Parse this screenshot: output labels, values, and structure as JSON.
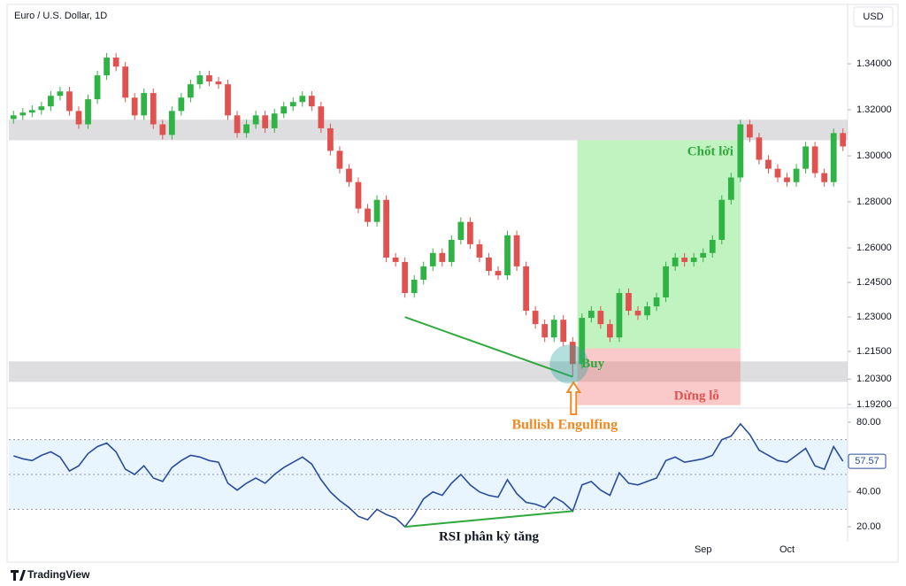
{
  "header": {
    "title": "Euro / U.S. Dollar, 1D",
    "currency": "USD"
  },
  "footer": {
    "brand": "TradingView"
  },
  "chart_data": [
    {
      "type": "candlestick",
      "categories": [
        null,
        null,
        null,
        null,
        null,
        null,
        null,
        null,
        null,
        null,
        null,
        null,
        null,
        null,
        null,
        null,
        null,
        null,
        null,
        null,
        null,
        null,
        null,
        null,
        null,
        null,
        null,
        null,
        null,
        null,
        null,
        null,
        null,
        null,
        null,
        null,
        null,
        null,
        null,
        null,
        null,
        null,
        null,
        null,
        null,
        null,
        null,
        null,
        null,
        null,
        null,
        null,
        null,
        null,
        null,
        null,
        null,
        null,
        null,
        null,
        null,
        null,
        null,
        null,
        null,
        null,
        null,
        null,
        null,
        null,
        null,
        null,
        null,
        null,
        "Sep",
        null,
        null,
        null,
        null,
        null,
        null,
        null,
        null,
        "Oct",
        null,
        null,
        null,
        null,
        null,
        null
      ],
      "open": [
        1.316,
        1.3176,
        1.3188,
        1.3199,
        1.3215,
        1.3261,
        1.328,
        1.3195,
        1.3137,
        1.3246,
        1.335,
        1.3427,
        1.3388,
        1.3253,
        1.3176,
        1.3273,
        1.3137,
        1.3091,
        1.3195,
        1.3253,
        1.3311,
        1.335,
        1.3323,
        1.3311,
        1.3176,
        1.3099,
        1.3137,
        1.3176,
        1.312,
        1.3184,
        1.3215,
        1.3234,
        1.3261,
        1.3215,
        1.312,
        1.3022,
        1.2944,
        1.2886,
        1.2771,
        1.2713,
        1.2809,
        1.2558,
        1.2539,
        1.2404,
        1.2462,
        1.252,
        1.2578,
        1.2539,
        1.2635,
        1.2713,
        1.2616,
        1.2558,
        1.25,
        1.2481,
        1.2655,
        1.252,
        1.2327,
        1.2269,
        1.2211,
        1.2288,
        1.2192,
        1.2095,
        1.2296,
        1.2327,
        1.2269,
        1.2211,
        1.2404,
        1.2327,
        1.2307,
        1.2346,
        1.2385,
        1.252,
        1.2558,
        1.2539,
        1.2558,
        1.2578,
        1.2635,
        1.2809,
        1.2906,
        1.3137,
        1.308,
        1.2983,
        1.2944,
        1.2906,
        1.2886,
        1.2944,
        1.3041,
        1.2925,
        1.2886,
        1.3099
      ],
      "high": [
        1.3196,
        1.3208,
        1.3219,
        1.3235,
        1.3281,
        1.33,
        1.33,
        1.3215,
        1.3266,
        1.337,
        1.3447,
        1.3447,
        1.3408,
        1.3273,
        1.3293,
        1.3293,
        1.3157,
        1.3215,
        1.3273,
        1.3331,
        1.337,
        1.337,
        1.3343,
        1.3331,
        1.3196,
        1.3157,
        1.3196,
        1.3196,
        1.3204,
        1.3235,
        1.3254,
        1.3281,
        1.3281,
        1.3235,
        1.314,
        1.3042,
        1.2964,
        1.2906,
        1.2791,
        1.2829,
        1.2829,
        1.2578,
        1.2559,
        1.2482,
        1.254,
        1.2598,
        1.2598,
        1.2655,
        1.2733,
        1.2733,
        1.2636,
        1.2578,
        1.252,
        1.2675,
        1.2675,
        1.254,
        1.2347,
        1.2289,
        1.2308,
        1.2308,
        1.2212,
        1.2316,
        1.2347,
        1.2347,
        1.2289,
        1.2424,
        1.2424,
        1.2347,
        1.2366,
        1.2405,
        1.254,
        1.2578,
        1.2578,
        1.2578,
        1.2598,
        1.2655,
        1.2829,
        1.2926,
        1.3157,
        1.3157,
        1.31,
        1.3003,
        1.2964,
        1.2926,
        1.2964,
        1.3061,
        1.3061,
        1.2945,
        1.3119,
        1.3119
      ],
      "low": [
        1.314,
        1.3156,
        1.3168,
        1.3179,
        1.3195,
        1.3241,
        1.3175,
        1.3117,
        1.3117,
        1.3226,
        1.333,
        1.3368,
        1.3233,
        1.3156,
        1.3156,
        1.3117,
        1.3071,
        1.3071,
        1.3175,
        1.3233,
        1.3291,
        1.3303,
        1.3291,
        1.3156,
        1.3079,
        1.3079,
        1.3117,
        1.31,
        1.31,
        1.3164,
        1.3195,
        1.3214,
        1.3195,
        1.31,
        1.3002,
        1.2924,
        1.2866,
        1.2751,
        1.2693,
        1.2693,
        1.2538,
        1.2519,
        1.2384,
        1.2384,
        1.2442,
        1.25,
        1.2519,
        1.2519,
        1.2615,
        1.2596,
        1.2538,
        1.248,
        1.2461,
        1.2461,
        1.25,
        1.2307,
        1.2249,
        1.2191,
        1.2191,
        1.2172,
        1.204,
        1.2075,
        1.2276,
        1.2249,
        1.2191,
        1.2191,
        1.2307,
        1.2287,
        1.2287,
        1.2326,
        1.2365,
        1.25,
        1.2519,
        1.2519,
        1.2538,
        1.2558,
        1.2615,
        1.2789,
        1.2886,
        1.306,
        1.2963,
        1.2924,
        1.2886,
        1.2866,
        1.2866,
        1.2924,
        1.2905,
        1.2866,
        1.2866,
        1.3021
      ],
      "close": [
        1.3176,
        1.3188,
        1.3199,
        1.3215,
        1.3261,
        1.328,
        1.3195,
        1.3137,
        1.3246,
        1.335,
        1.3427,
        1.3388,
        1.3253,
        1.3176,
        1.3273,
        1.3137,
        1.3091,
        1.3195,
        1.3253,
        1.3311,
        1.335,
        1.3323,
        1.3311,
        1.3176,
        1.3099,
        1.3137,
        1.3176,
        1.312,
        1.3184,
        1.3215,
        1.3234,
        1.3261,
        1.3215,
        1.312,
        1.3022,
        1.2944,
        1.2886,
        1.2771,
        1.2713,
        1.2809,
        1.2558,
        1.2539,
        1.2404,
        1.2462,
        1.252,
        1.2578,
        1.2539,
        1.2635,
        1.2713,
        1.2616,
        1.2558,
        1.25,
        1.2481,
        1.2655,
        1.252,
        1.2327,
        1.2269,
        1.2211,
        1.2288,
        1.2192,
        1.2095,
        1.2296,
        1.2327,
        1.2269,
        1.2211,
        1.2404,
        1.2327,
        1.2307,
        1.2346,
        1.2385,
        1.252,
        1.2558,
        1.2539,
        1.2558,
        1.2578,
        1.2635,
        1.2809,
        1.2906,
        1.3137,
        1.308,
        1.2983,
        1.2944,
        1.2906,
        1.2886,
        1.2944,
        1.3041,
        1.2925,
        1.2886,
        1.3099,
        1.3041
      ],
      "colors": {
        "up": "#2fb344",
        "down": "#e0524f"
      },
      "ylim": [
        1.1908,
        1.3658
      ],
      "yticks": [
        {
          "value": 1.34,
          "label": "1.34000"
        },
        {
          "value": 1.32,
          "label": "1.32000"
        },
        {
          "value": 1.3,
          "label": "1.30000"
        },
        {
          "value": 1.28,
          "label": "1.28000"
        },
        {
          "value": 1.26,
          "label": "1.26000"
        },
        {
          "value": 1.245,
          "label": "1.24500"
        },
        {
          "value": 1.23,
          "label": "1.23000"
        },
        {
          "value": 1.215,
          "label": "1.21500"
        },
        {
          "value": 1.203,
          "label": "1.20300"
        },
        {
          "value": 1.192,
          "label": "1.19200"
        }
      ],
      "zones": [
        [
          1.3068,
          1.3157
        ],
        [
          1.2018,
          1.2107
        ]
      ],
      "position": {
        "target": 1.3068,
        "entry": 1.2164,
        "stop": 1.1917
      },
      "annotations": {
        "take_profit": "Chốt lời",
        "buy": "Buy",
        "stop_loss": "Dừng lỗ",
        "pattern": "Bullish Engulfing"
      },
      "grid": false
    },
    {
      "type": "line",
      "values": [
        60.7,
        59,
        58,
        61,
        63,
        60,
        52,
        55,
        62,
        66,
        68,
        63,
        53,
        50,
        55,
        48,
        46,
        54,
        58,
        61,
        60,
        58,
        57,
        45,
        41,
        45,
        48,
        45,
        50,
        54,
        57,
        60,
        56,
        47,
        40,
        35,
        31,
        26,
        24,
        30,
        27,
        25,
        20,
        27,
        36,
        40,
        38,
        45,
        50,
        44,
        40,
        38,
        37,
        47,
        39,
        34,
        33,
        31,
        37,
        34,
        29,
        44,
        46,
        41,
        38,
        51,
        45,
        44,
        46,
        48,
        58,
        60,
        57,
        58,
        59,
        61,
        70,
        72,
        79,
        73,
        64,
        61,
        58,
        57,
        61,
        65,
        55,
        53,
        66,
        57.57
      ],
      "color": "#2a4d9b",
      "ylim": [
        11.4,
        87.1
      ],
      "yticks": [
        {
          "value": 80,
          "label": "80.00"
        },
        {
          "value": 40,
          "label": "40.00"
        },
        {
          "value": 20,
          "label": "20.00"
        }
      ],
      "band": [
        30,
        70
      ],
      "midline": 50,
      "annotation": "RSI phân kỳ tăng"
    }
  ]
}
